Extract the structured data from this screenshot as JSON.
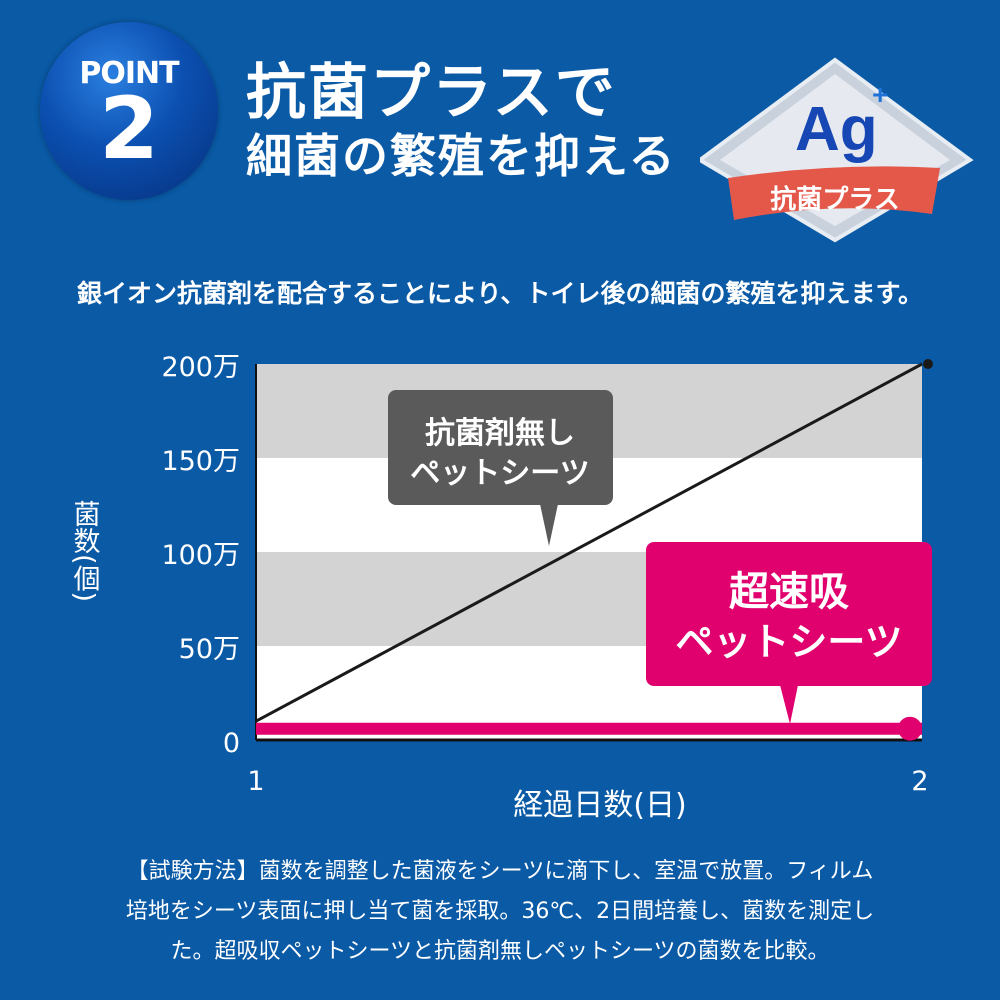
{
  "header": {
    "badge_label": "POINT",
    "badge_number": "2",
    "title_line1": "抗菌プラスで",
    "title_line2": "細菌の繁殖を抑える",
    "logo_text": "Ag",
    "logo_superscript": "+",
    "logo_ribbon": "抗菌プラス"
  },
  "subtitle": "銀イオン抗菌剤を配合することにより、トイレ後の細菌の繁殖を抑えます。",
  "chart_data": {
    "type": "line",
    "xlabel": "経過日数(日)",
    "ylabel": "菌数(個)",
    "x": [
      1,
      2
    ],
    "x_tick_labels": [
      "1",
      "2"
    ],
    "y_tick_labels": [
      "0",
      "50万",
      "100万",
      "150万",
      "200万"
    ],
    "y_ticks": [
      0,
      500000,
      1000000,
      1500000,
      2000000
    ],
    "ylim": [
      0,
      2000000
    ],
    "xlim": [
      1,
      2
    ],
    "grid": "alternating horizontal bands",
    "series": [
      {
        "name": "抗菌剤無し ペットシーツ",
        "label_lines": [
          "抗菌剤無し",
          "ペットシーツ"
        ],
        "values": [
          100000,
          2000000
        ],
        "color": "#1a1a1a"
      },
      {
        "name": "超速吸 ペットシーツ",
        "label_lines": [
          "超速吸",
          "ペットシーツ"
        ],
        "values": [
          60000,
          60000
        ],
        "color": "#e0006e"
      }
    ]
  },
  "colors": {
    "background": "#0a5aa6",
    "band_gray": "#d3d3d3",
    "callout_gray": "#5a5a5a",
    "accent_pink": "#e0006e"
  },
  "footnote": {
    "lines": [
      "【試験方法】菌数を調整した菌液をシーツに滴下し、室温で放置。フィルム",
      "培地をシーツ表面に押し当て菌を採取。36℃、2日間培養し、菌数を測定し",
      "た。超吸収ペットシーツと抗菌剤無しペットシーツの菌数を比較。"
    ]
  }
}
